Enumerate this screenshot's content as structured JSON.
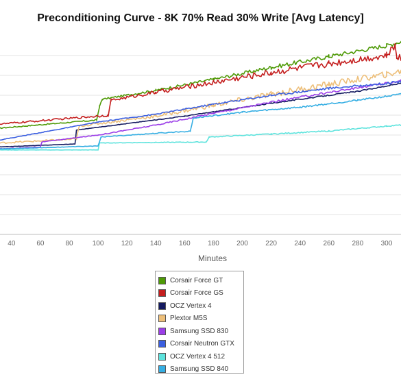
{
  "chart_data": {
    "type": "line",
    "title": "Preconditioning Curve - 8K 70% Read 30% Write [Avg Latency]",
    "xlabel": "Minutes",
    "ylabel": "",
    "xlim": [
      32,
      310
    ],
    "ylim": [
      0,
      10
    ],
    "x_ticks": [
      40,
      60,
      80,
      100,
      120,
      140,
      160,
      180,
      200,
      220,
      240,
      260,
      280,
      300
    ],
    "x_tick_labels": [
      "40",
      "60",
      "80",
      "100",
      "120",
      "140",
      "160",
      "180",
      "200",
      "220",
      "240",
      "260",
      "280",
      "300"
    ],
    "y_gridlines": [
      1,
      2,
      3,
      4,
      5,
      6,
      7,
      8,
      9
    ],
    "grid": true,
    "legend_position": "bottom-center",
    "series": [
      {
        "name": "Corsair Force GT",
        "color": "#4e9a06",
        "noise": 0.08,
        "points": [
          [
            32,
            5.35
          ],
          [
            99,
            5.75
          ],
          [
            101,
            6.45
          ],
          [
            103,
            6.8
          ],
          [
            140,
            7.25
          ],
          [
            180,
            7.8
          ],
          [
            220,
            8.4
          ],
          [
            260,
            8.95
          ],
          [
            300,
            9.5
          ],
          [
            310,
            9.7
          ]
        ]
      },
      {
        "name": "Corsair Force GS",
        "color": "#c41e1e",
        "noise": 0.13,
        "points": [
          [
            32,
            5.55
          ],
          [
            107,
            6.0
          ],
          [
            109,
            6.75
          ],
          [
            140,
            7.15
          ],
          [
            180,
            7.65
          ],
          [
            220,
            8.15
          ],
          [
            260,
            8.6
          ],
          [
            300,
            9.0
          ],
          [
            306,
            9.5
          ],
          [
            307,
            9.0
          ],
          [
            310,
            8.85
          ]
        ]
      },
      {
        "name": "OCZ Vertex 4",
        "color": "#141a60",
        "noise": 0.02,
        "points": [
          [
            32,
            4.4
          ],
          [
            84,
            4.55
          ],
          [
            85,
            5.25
          ],
          [
            160,
            5.95
          ],
          [
            220,
            6.6
          ],
          [
            280,
            7.2
          ],
          [
            310,
            7.6
          ]
        ]
      },
      {
        "name": "Plextor M5S",
        "color": "#edbf7a",
        "noise": 0.12,
        "points": [
          [
            32,
            4.6
          ],
          [
            85,
            4.8
          ],
          [
            87,
            5.45
          ],
          [
            140,
            5.95
          ],
          [
            180,
            6.5
          ],
          [
            220,
            7.05
          ],
          [
            260,
            7.55
          ],
          [
            300,
            8.05
          ],
          [
            310,
            8.2
          ]
        ]
      },
      {
        "name": "Samsung SSD 830",
        "color": "#9b3ee8",
        "noise": 0.04,
        "points": [
          [
            32,
            4.3
          ],
          [
            60,
            4.4
          ],
          [
            61,
            4.65
          ],
          [
            100,
            5.0
          ],
          [
            140,
            5.5
          ],
          [
            180,
            6.1
          ],
          [
            220,
            6.65
          ],
          [
            260,
            7.15
          ],
          [
            300,
            7.6
          ],
          [
            310,
            7.75
          ]
        ]
      },
      {
        "name": "Corsair Neutron GTX",
        "color": "#3b5fe0",
        "noise": 0.04,
        "points": [
          [
            32,
            4.75
          ],
          [
            100,
            5.65
          ],
          [
            140,
            6.05
          ],
          [
            180,
            6.55
          ],
          [
            220,
            7.0
          ],
          [
            260,
            7.35
          ],
          [
            300,
            7.6
          ],
          [
            310,
            7.7
          ]
        ]
      },
      {
        "name": "OCZ Vertex 4 512",
        "color": "#5de3dd",
        "noise": 0.02,
        "points": [
          [
            32,
            4.25
          ],
          [
            100,
            4.25
          ],
          [
            101,
            4.6
          ],
          [
            175,
            4.65
          ],
          [
            177,
            4.9
          ],
          [
            220,
            5.05
          ],
          [
            260,
            5.2
          ],
          [
            300,
            5.45
          ],
          [
            310,
            5.5
          ]
        ]
      },
      {
        "name": "Samsung SSD 840",
        "color": "#35aee3",
        "noise": 0.03,
        "points": [
          [
            32,
            4.3
          ],
          [
            100,
            4.45
          ],
          [
            102,
            4.9
          ],
          [
            164,
            5.2
          ],
          [
            166,
            5.85
          ],
          [
            200,
            6.15
          ],
          [
            240,
            6.4
          ],
          [
            280,
            6.75
          ],
          [
            310,
            7.05
          ]
        ]
      }
    ]
  }
}
